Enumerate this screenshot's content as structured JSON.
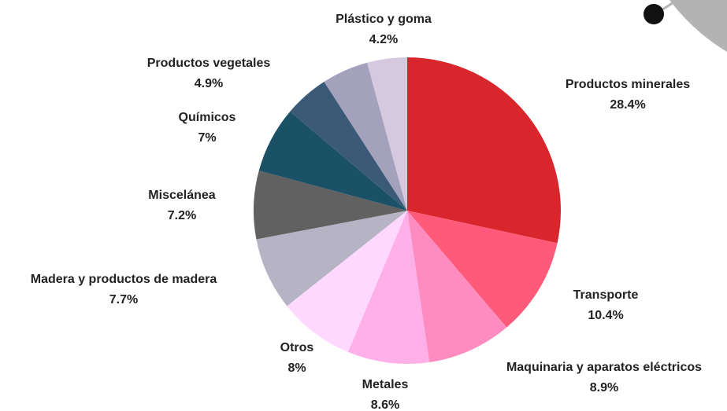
{
  "chart_data": {
    "type": "pie",
    "categories": [
      "Productos minerales",
      "Transporte",
      "Maquinaria y aparatos eléctricos",
      "Metales",
      "Otros",
      "Madera y productos de madera",
      "Miscelánea",
      "Químicos",
      null,
      "Productos vegetales",
      "Plástico y goma"
    ],
    "values": [
      28.4,
      10.4,
      8.9,
      8.6,
      8,
      7.7,
      7.2,
      7,
      4.7,
      4.9,
      4.2
    ],
    "value_labels": [
      "28.4%",
      "10.4%",
      "8.9%",
      "8.6%",
      "8%",
      "7.7%",
      "7.2%",
      "7%",
      null,
      "4.9%",
      "4.2%"
    ],
    "colors": [
      "#d9262c",
      "#ff5a7a",
      "#ff8cc0",
      "#ffb0e8",
      "#ffd8ff",
      "#b6b4c4",
      "#616161",
      "#1b5166",
      "#3b5a78",
      "#a3a1bc",
      "#d5c9e0"
    ]
  }
}
